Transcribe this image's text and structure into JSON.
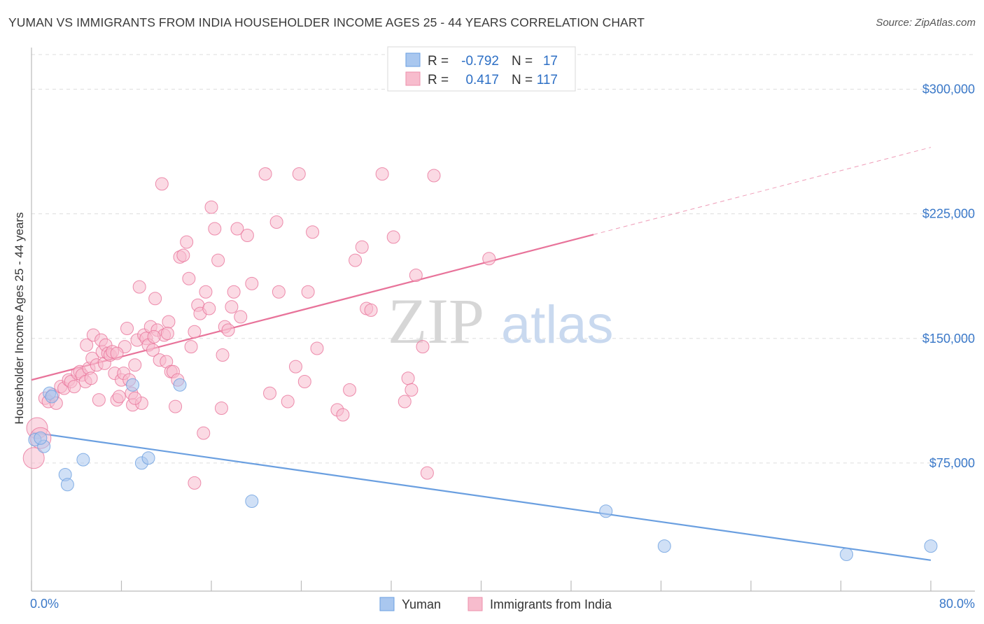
{
  "title": "YUMAN VS IMMIGRANTS FROM INDIA HOUSEHOLDER INCOME AGES 25 - 44 YEARS CORRELATION CHART",
  "source": "Source: ZipAtlas.com",
  "watermark": {
    "zip": "ZIP",
    "atlas": "atlas"
  },
  "legend": {
    "rows": [
      {
        "r_label": "R =",
        "r_value": "-0.792",
        "n_label": "N =",
        "n_value": "17",
        "color": "#a9c7ef",
        "stroke": "#6a9fe0"
      },
      {
        "r_label": "R =",
        "r_value": "0.417",
        "n_label": "N =",
        "n_value": "117",
        "color": "#f7bccd",
        "stroke": "#ee8fab"
      }
    ]
  },
  "bottom_legend": [
    {
      "label": "Yuman",
      "color": "#a9c7ef",
      "stroke": "#6a9fe0"
    },
    {
      "label": "Immigrants from India",
      "color": "#f7bccd",
      "stroke": "#ee8fab"
    }
  ],
  "chart_data": {
    "type": "scatter",
    "title": "YUMAN VS IMMIGRANTS FROM INDIA HOUSEHOLDER INCOME AGES 25 - 44 YEARS CORRELATION CHART",
    "xlabel": "",
    "ylabel": "Householder Income Ages 25 - 44 years",
    "xlim": [
      0,
      80
    ],
    "ylim": [
      0,
      320000
    ],
    "x_tick_labels": {
      "min": "0.0%",
      "max": "80.0%"
    },
    "y_ticks": [
      {
        "value": 75000,
        "label": "$75,000"
      },
      {
        "value": 150000,
        "label": "$150,000"
      },
      {
        "value": 225000,
        "label": "$225,000"
      },
      {
        "value": 300000,
        "label": "$300,000"
      }
    ],
    "grid": "horizontal-dashed",
    "series": [
      {
        "name": "Yuman",
        "color": "#6a9fe0",
        "fill": "#a9c7ef",
        "trend": {
          "x": [
            0,
            80
          ],
          "y": [
            93500,
            16500
          ],
          "solid_until": 80
        },
        "points": [
          [
            0.3,
            89000
          ],
          [
            1.1,
            85000
          ],
          [
            1.6,
            117000
          ],
          [
            3.0,
            68000
          ],
          [
            3.2,
            62000
          ],
          [
            4.6,
            77000
          ],
          [
            9.0,
            122000
          ],
          [
            9.8,
            75000
          ],
          [
            10.4,
            78000
          ],
          [
            13.2,
            122000
          ],
          [
            19.6,
            52000
          ],
          [
            51.1,
            46000
          ],
          [
            56.3,
            25000
          ],
          [
            72.5,
            20000
          ],
          [
            80.0,
            25000
          ],
          [
            0.8,
            90000
          ],
          [
            1.8,
            115000
          ]
        ]
      },
      {
        "name": "Immigrants from India",
        "color": "#e8739a",
        "fill": "#f7bccd",
        "trend": {
          "x": [
            0,
            80
          ],
          "y": [
            125000,
            265000
          ],
          "solid_until": 50
        },
        "points": [
          [
            0.2,
            78000
          ],
          [
            0.5,
            96000
          ],
          [
            0.8,
            90000
          ],
          [
            1.2,
            114000
          ],
          [
            1.5,
            112000
          ],
          [
            1.9,
            116000
          ],
          [
            2.2,
            111000
          ],
          [
            2.6,
            121000
          ],
          [
            2.9,
            120000
          ],
          [
            3.3,
            125000
          ],
          [
            3.5,
            124000
          ],
          [
            3.8,
            121000
          ],
          [
            4.1,
            129000
          ],
          [
            4.3,
            130000
          ],
          [
            4.5,
            128000
          ],
          [
            4.8,
            124000
          ],
          [
            4.9,
            146000
          ],
          [
            5.1,
            132000
          ],
          [
            5.3,
            126000
          ],
          [
            5.4,
            138000
          ],
          [
            5.5,
            152000
          ],
          [
            5.8,
            134000
          ],
          [
            6.0,
            113000
          ],
          [
            6.2,
            149000
          ],
          [
            6.3,
            142000
          ],
          [
            6.5,
            135000
          ],
          [
            6.6,
            146000
          ],
          [
            6.8,
            141000
          ],
          [
            7.0,
            140000
          ],
          [
            7.2,
            142000
          ],
          [
            7.4,
            129000
          ],
          [
            7.6,
            113000
          ],
          [
            7.8,
            115000
          ],
          [
            8.0,
            125000
          ],
          [
            8.2,
            129000
          ],
          [
            8.3,
            145000
          ],
          [
            8.5,
            156000
          ],
          [
            8.7,
            125000
          ],
          [
            8.9,
            117000
          ],
          [
            9.0,
            110000
          ],
          [
            9.2,
            134000
          ],
          [
            9.4,
            149000
          ],
          [
            9.6,
            181000
          ],
          [
            9.8,
            111000
          ],
          [
            10.0,
            152000
          ],
          [
            10.2,
            150000
          ],
          [
            10.4,
            146000
          ],
          [
            10.6,
            157000
          ],
          [
            10.8,
            143000
          ],
          [
            11.0,
            174000
          ],
          [
            11.2,
            155000
          ],
          [
            11.4,
            137000
          ],
          [
            11.6,
            243000
          ],
          [
            11.8,
            152000
          ],
          [
            12.0,
            136000
          ],
          [
            12.2,
            160000
          ],
          [
            12.4,
            130000
          ],
          [
            12.6,
            130000
          ],
          [
            12.8,
            109000
          ],
          [
            13.2,
            199000
          ],
          [
            13.5,
            200000
          ],
          [
            13.8,
            208000
          ],
          [
            14.0,
            186000
          ],
          [
            14.2,
            145000
          ],
          [
            14.5,
            154000
          ],
          [
            14.8,
            170000
          ],
          [
            15.0,
            165000
          ],
          [
            15.3,
            93000
          ],
          [
            15.5,
            178000
          ],
          [
            15.8,
            168000
          ],
          [
            16.0,
            229000
          ],
          [
            16.3,
            216000
          ],
          [
            16.6,
            197000
          ],
          [
            16.9,
            108000
          ],
          [
            17.2,
            157000
          ],
          [
            17.5,
            155000
          ],
          [
            17.8,
            169000
          ],
          [
            18.0,
            178000
          ],
          [
            18.3,
            216000
          ],
          [
            18.6,
            163000
          ],
          [
            19.2,
            212000
          ],
          [
            19.6,
            183000
          ],
          [
            20.8,
            249000
          ],
          [
            21.2,
            117000
          ],
          [
            21.8,
            220000
          ],
          [
            22.0,
            178000
          ],
          [
            22.8,
            112000
          ],
          [
            23.5,
            133000
          ],
          [
            23.8,
            249000
          ],
          [
            24.3,
            124000
          ],
          [
            24.6,
            178000
          ],
          [
            25.0,
            214000
          ],
          [
            25.4,
            144000
          ],
          [
            27.2,
            107000
          ],
          [
            27.7,
            104000
          ],
          [
            28.3,
            119000
          ],
          [
            28.8,
            197000
          ],
          [
            29.4,
            205000
          ],
          [
            29.8,
            168000
          ],
          [
            30.2,
            167000
          ],
          [
            31.2,
            249000
          ],
          [
            32.2,
            211000
          ],
          [
            33.2,
            112000
          ],
          [
            33.5,
            126000
          ],
          [
            33.8,
            119000
          ],
          [
            34.2,
            188000
          ],
          [
            34.8,
            145000
          ],
          [
            35.2,
            69000
          ],
          [
            35.8,
            248000
          ],
          [
            40.7,
            198000
          ],
          [
            14.5,
            63000
          ],
          [
            13.0,
            125000
          ],
          [
            7.6,
            141000
          ],
          [
            10.9,
            151000
          ],
          [
            17.0,
            140000
          ],
          [
            12.1,
            153000
          ],
          [
            9.2,
            114000
          ]
        ]
      }
    ]
  }
}
